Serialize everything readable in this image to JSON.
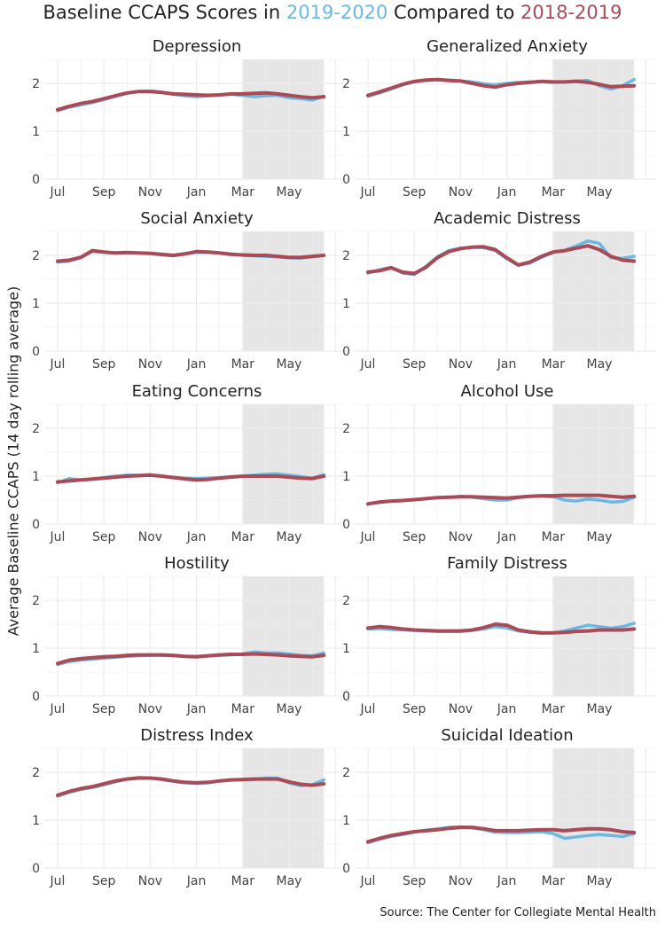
{
  "title": {
    "prefix": "Baseline CCAPS Scores in ",
    "year_a": "2019-2020",
    "middle": " Compared to ",
    "year_b": "2018-2019"
  },
  "ylabel": "Average Baseline CCAPS (14 day rolling average)",
  "source": "Source: The Center for Collegiate Mental Health",
  "colors": {
    "y2019_2020": "#6bb8e3",
    "y2018_2019": "#a84b57",
    "shade": "#e6e6e6",
    "grid": "#ececec"
  },
  "chart_data": {
    "type": "line",
    "x_ticks": [
      "Jul",
      "Sep",
      "Nov",
      "Jan",
      "Mar",
      "May"
    ],
    "y_ticks": [
      "0",
      "1",
      "2"
    ],
    "ylim": [
      0,
      2.5
    ],
    "xlim_months": [
      0,
      12
    ],
    "shaded_period": [
      "Mar",
      "mid-Jun"
    ],
    "grid": true,
    "x_months": [
      0,
      0.5,
      1,
      1.5,
      2,
      2.5,
      3,
      3.5,
      4,
      4.5,
      5,
      5.5,
      6,
      6.5,
      7,
      7.5,
      8,
      8.5,
      9,
      9.5,
      10,
      10.5,
      11,
      11.5
    ],
    "panels": [
      {
        "title": "Depression",
        "series": [
          {
            "name": "2018-2019",
            "values": [
              1.45,
              1.52,
              1.58,
              1.62,
              1.68,
              1.74,
              1.8,
              1.83,
              1.83,
              1.81,
              1.78,
              1.77,
              1.76,
              1.75,
              1.76,
              1.78,
              1.78,
              1.79,
              1.8,
              1.78,
              1.75,
              1.72,
              1.7,
              1.72
            ]
          },
          {
            "name": "2019-2020",
            "values": [
              1.43,
              1.5,
              1.55,
              1.6,
              1.66,
              1.73,
              1.79,
              1.83,
              1.84,
              1.82,
              1.77,
              1.74,
              1.72,
              1.74,
              1.76,
              1.77,
              1.75,
              1.72,
              1.74,
              1.75,
              1.7,
              1.68,
              1.65,
              1.73
            ]
          }
        ]
      },
      {
        "title": "Generalized Anxiety",
        "series": [
          {
            "name": "2018-2019",
            "values": [
              1.75,
              1.82,
              1.9,
              1.98,
              2.04,
              2.07,
              2.08,
              2.06,
              2.05,
              2.0,
              1.95,
              1.92,
              1.97,
              2.0,
              2.02,
              2.04,
              2.03,
              2.03,
              2.04,
              2.02,
              1.98,
              1.93,
              1.94,
              1.95
            ]
          },
          {
            "name": "2019-2020",
            "values": [
              1.73,
              1.8,
              1.88,
              1.97,
              2.03,
              2.06,
              2.08,
              2.07,
              2.05,
              2.03,
              1.99,
              1.97,
              2.0,
              2.02,
              2.03,
              2.03,
              2.02,
              2.03,
              2.05,
              2.06,
              1.95,
              1.88,
              1.95,
              2.08
            ]
          }
        ]
      },
      {
        "title": "Social Anxiety",
        "series": [
          {
            "name": "2018-2019",
            "values": [
              1.88,
              1.9,
              1.96,
              2.1,
              2.07,
              2.05,
              2.06,
              2.05,
              2.04,
              2.02,
              2.0,
              2.03,
              2.08,
              2.07,
              2.05,
              2.02,
              2.01,
              2.0,
              2.0,
              1.98,
              1.96,
              1.96,
              1.98,
              2.0
            ]
          },
          {
            "name": "2019-2020",
            "values": [
              1.86,
              1.88,
              1.95,
              2.08,
              2.06,
              2.05,
              2.05,
              2.05,
              2.04,
              2.01,
              1.99,
              2.04,
              2.06,
              2.06,
              2.05,
              2.03,
              2.0,
              1.99,
              1.98,
              1.97,
              1.95,
              1.94,
              1.97,
              2.0
            ]
          }
        ]
      },
      {
        "title": "Academic Distress",
        "series": [
          {
            "name": "2018-2019",
            "values": [
              1.65,
              1.68,
              1.74,
              1.65,
              1.62,
              1.75,
              1.95,
              2.08,
              2.14,
              2.17,
              2.18,
              2.12,
              1.95,
              1.8,
              1.86,
              1.98,
              2.07,
              2.1,
              2.15,
              2.2,
              2.12,
              1.98,
              1.9,
              1.88
            ]
          },
          {
            "name": "2019-2020",
            "values": [
              1.63,
              1.7,
              1.75,
              1.63,
              1.6,
              1.77,
              1.97,
              2.1,
              2.15,
              2.17,
              2.16,
              2.1,
              1.93,
              1.79,
              1.84,
              1.96,
              2.06,
              2.1,
              2.2,
              2.3,
              2.25,
              1.95,
              1.94,
              1.98
            ]
          }
        ]
      },
      {
        "title": "Eating Concerns",
        "series": [
          {
            "name": "2018-2019",
            "values": [
              0.88,
              0.9,
              0.92,
              0.94,
              0.96,
              0.98,
              1.0,
              1.01,
              1.02,
              1.0,
              0.97,
              0.94,
              0.92,
              0.93,
              0.96,
              0.98,
              1.0,
              1.0,
              1.0,
              1.0,
              0.98,
              0.96,
              0.95,
              1.0
            ]
          },
          {
            "name": "2019-2020",
            "values": [
              0.86,
              0.95,
              0.92,
              0.93,
              0.97,
              1.0,
              1.02,
              1.02,
              1.03,
              1.0,
              0.98,
              0.96,
              0.95,
              0.96,
              0.97,
              0.99,
              1.0,
              1.02,
              1.04,
              1.05,
              1.02,
              0.99,
              0.96,
              1.03
            ]
          }
        ]
      },
      {
        "title": "Alcohol Use",
        "series": [
          {
            "name": "2018-2019",
            "values": [
              0.42,
              0.46,
              0.48,
              0.49,
              0.51,
              0.53,
              0.55,
              0.56,
              0.57,
              0.57,
              0.56,
              0.55,
              0.54,
              0.56,
              0.58,
              0.59,
              0.59,
              0.6,
              0.6,
              0.6,
              0.6,
              0.58,
              0.56,
              0.58
            ]
          },
          {
            "name": "2019-2020",
            "values": [
              0.42,
              0.45,
              0.48,
              0.49,
              0.51,
              0.53,
              0.55,
              0.56,
              0.58,
              0.56,
              0.53,
              0.5,
              0.5,
              0.55,
              0.58,
              0.58,
              0.57,
              0.5,
              0.48,
              0.52,
              0.5,
              0.46,
              0.47,
              0.56
            ]
          }
        ]
      },
      {
        "title": "Hostility",
        "series": [
          {
            "name": "2018-2019",
            "values": [
              0.68,
              0.75,
              0.78,
              0.8,
              0.82,
              0.83,
              0.85,
              0.86,
              0.86,
              0.86,
              0.85,
              0.83,
              0.82,
              0.84,
              0.86,
              0.87,
              0.87,
              0.88,
              0.87,
              0.86,
              0.84,
              0.83,
              0.82,
              0.85
            ]
          },
          {
            "name": "2019-2020",
            "values": [
              0.66,
              0.72,
              0.75,
              0.77,
              0.79,
              0.81,
              0.83,
              0.84,
              0.85,
              0.85,
              0.84,
              0.83,
              0.83,
              0.84,
              0.85,
              0.86,
              0.88,
              0.92,
              0.9,
              0.9,
              0.88,
              0.85,
              0.84,
              0.9
            ]
          }
        ]
      },
      {
        "title": "Family Distress",
        "series": [
          {
            "name": "2018-2019",
            "values": [
              1.42,
              1.45,
              1.43,
              1.4,
              1.38,
              1.37,
              1.36,
              1.36,
              1.36,
              1.38,
              1.43,
              1.5,
              1.48,
              1.38,
              1.34,
              1.32,
              1.32,
              1.33,
              1.35,
              1.36,
              1.38,
              1.38,
              1.38,
              1.4
            ]
          },
          {
            "name": "2019-2020",
            "values": [
              1.4,
              1.41,
              1.39,
              1.38,
              1.37,
              1.36,
              1.35,
              1.35,
              1.35,
              1.37,
              1.4,
              1.45,
              1.42,
              1.36,
              1.33,
              1.31,
              1.32,
              1.36,
              1.42,
              1.48,
              1.45,
              1.42,
              1.45,
              1.52
            ]
          }
        ]
      },
      {
        "title": "Distress Index",
        "series": [
          {
            "name": "2018-2019",
            "values": [
              1.52,
              1.6,
              1.66,
              1.7,
              1.76,
              1.82,
              1.86,
              1.88,
              1.88,
              1.86,
              1.82,
              1.79,
              1.78,
              1.79,
              1.82,
              1.84,
              1.85,
              1.86,
              1.86,
              1.86,
              1.8,
              1.75,
              1.73,
              1.76
            ]
          },
          {
            "name": "2019-2020",
            "values": [
              1.5,
              1.58,
              1.64,
              1.68,
              1.74,
              1.8,
              1.86,
              1.89,
              1.88,
              1.85,
              1.81,
              1.78,
              1.77,
              1.78,
              1.82,
              1.84,
              1.84,
              1.85,
              1.88,
              1.88,
              1.78,
              1.72,
              1.74,
              1.84
            ]
          }
        ]
      },
      {
        "title": "Suicidal Ideation",
        "series": [
          {
            "name": "2018-2019",
            "values": [
              0.55,
              0.62,
              0.68,
              0.72,
              0.76,
              0.78,
              0.8,
              0.83,
              0.85,
              0.85,
              0.82,
              0.78,
              0.78,
              0.78,
              0.79,
              0.8,
              0.8,
              0.78,
              0.8,
              0.82,
              0.82,
              0.8,
              0.76,
              0.74
            ]
          },
          {
            "name": "2019-2020",
            "values": [
              0.53,
              0.6,
              0.66,
              0.7,
              0.75,
              0.79,
              0.82,
              0.85,
              0.86,
              0.84,
              0.8,
              0.75,
              0.74,
              0.74,
              0.75,
              0.76,
              0.72,
              0.62,
              0.65,
              0.68,
              0.7,
              0.68,
              0.66,
              0.72
            ]
          }
        ]
      }
    ]
  }
}
